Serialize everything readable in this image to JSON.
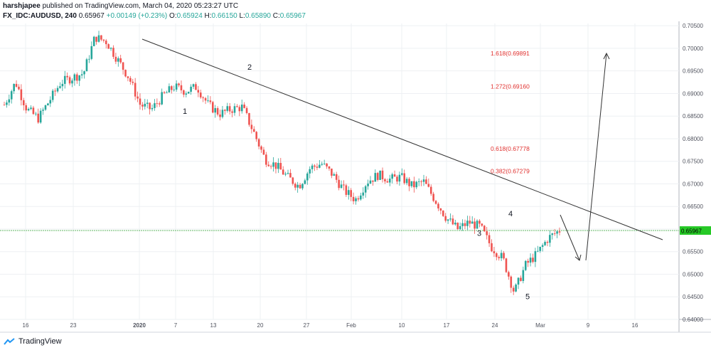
{
  "header": {
    "user": "harshjapee",
    "publish_text": "published on TradingView.com, March 04, 2020 05:23:27 UTC",
    "symbol": "FX_IDC:AUDUSD, 240",
    "price": "0.65967",
    "change": "+0.00149 (+0.23%)",
    "ohlc": {
      "o_label": "O:",
      "o": "0.65924",
      "h_label": "H:",
      "h": "0.66150",
      "l_label": "L:",
      "l": "0.65890",
      "c_label": "C:",
      "c": "0.65967"
    }
  },
  "footer": {
    "brand": "TradingView"
  },
  "colors": {
    "up": "#26a69a",
    "down": "#ef5350",
    "fib": "#e0302e",
    "price_line": "#4caf50",
    "price_tag": "#26c926",
    "grid": "#eef0f3",
    "trend": "#333333"
  },
  "chart_data": {
    "type": "candlestick",
    "symbol": "FX_IDC:AUDUSD",
    "interval": "240",
    "ylim": [
      0.64,
      0.7055
    ],
    "y_ticks": [
      "0.70500",
      "0.70000",
      "0.69500",
      "0.69000",
      "0.68500",
      "0.68000",
      "0.67500",
      "0.67000",
      "0.66500",
      "0.66000",
      "0.65500",
      "0.65000",
      "0.64500",
      "0.64000"
    ],
    "x_ticks": [
      "16",
      "23",
      "2020",
      "7",
      "13",
      "20",
      "27",
      "Feb",
      "10",
      "17",
      "24",
      "Mar",
      "9",
      "16"
    ],
    "last_price": "0.65967",
    "fib_levels": [
      {
        "label": "1.618(0.69891",
        "value": 0.69891
      },
      {
        "label": "1.272(0.69160",
        "value": 0.6916
      },
      {
        "label": "0.618(0.67778",
        "value": 0.67778
      },
      {
        "label": "0.382(0.67279",
        "value": 0.67279
      }
    ],
    "wave_labels": [
      {
        "label": "1",
        "value": 0.6855
      },
      {
        "label": "2",
        "value": 0.6953
      },
      {
        "label": "3",
        "value": 0.6585
      },
      {
        "label": "4",
        "value": 0.6628
      },
      {
        "label": "5",
        "value": 0.6445
      }
    ],
    "price_path": [
      [
        "Dec 11",
        0.6875
      ],
      [
        "Dec 13",
        0.6925
      ],
      [
        "Dec 16",
        0.6865
      ],
      [
        "Dec 19",
        0.6845
      ],
      [
        "Dec 23",
        0.6885
      ],
      [
        "Dec 26",
        0.6925
      ],
      [
        "Dec 27",
        0.6935
      ],
      [
        "Dec 30",
        0.6945
      ],
      [
        "Dec 31",
        0.7025
      ],
      [
        "Jan 2",
        0.7015
      ],
      [
        "Jan 3",
        0.6975
      ],
      [
        "Jan 6",
        0.6935
      ],
      [
        "Jan 7",
        0.6875
      ],
      [
        "Jan 9",
        0.6865
      ],
      [
        "Jan 13",
        0.6895
      ],
      [
        "Jan 14",
        0.6915
      ],
      [
        "Jan 16",
        0.6905
      ],
      [
        "Jan 17",
        0.6915
      ],
      [
        "Jan 20",
        0.6875
      ],
      [
        "Jan 22",
        0.6855
      ],
      [
        "Jan 24",
        0.6865
      ],
      [
        "Jan 26",
        0.687
      ],
      [
        "Jan 27",
        0.6815
      ],
      [
        "Jan 28",
        0.6755
      ],
      [
        "Jan 30",
        0.674
      ],
      [
        "Feb 2",
        0.6715
      ],
      [
        "Feb 3",
        0.6695
      ],
      [
        "Feb 5",
        0.6735
      ],
      [
        "Feb 6",
        0.6745
      ],
      [
        "Feb 7",
        0.672
      ],
      [
        "Feb 9",
        0.6685
      ],
      [
        "Feb 10",
        0.6665
      ],
      [
        "Feb 12",
        0.6705
      ],
      [
        "Feb 14",
        0.672
      ],
      [
        "Feb 16",
        0.671
      ],
      [
        "Feb 17",
        0.6715
      ],
      [
        "Feb 18",
        0.6695
      ],
      [
        "Feb 19",
        0.6705
      ],
      [
        "Feb 20",
        0.6665
      ],
      [
        "Feb 21",
        0.6625
      ],
      [
        "Feb 22",
        0.66
      ],
      [
        "Feb 24",
        0.6615
      ],
      [
        "Feb 25",
        0.6605
      ],
      [
        "Feb 26",
        0.656
      ],
      [
        "Feb 27",
        0.6535
      ],
      [
        "Feb 28",
        0.646
      ],
      [
        "Mar 1",
        0.652
      ],
      [
        "Mar 2",
        0.6545
      ],
      [
        "Mar 3",
        0.658
      ],
      [
        "Mar 4",
        0.6597
      ]
    ]
  }
}
